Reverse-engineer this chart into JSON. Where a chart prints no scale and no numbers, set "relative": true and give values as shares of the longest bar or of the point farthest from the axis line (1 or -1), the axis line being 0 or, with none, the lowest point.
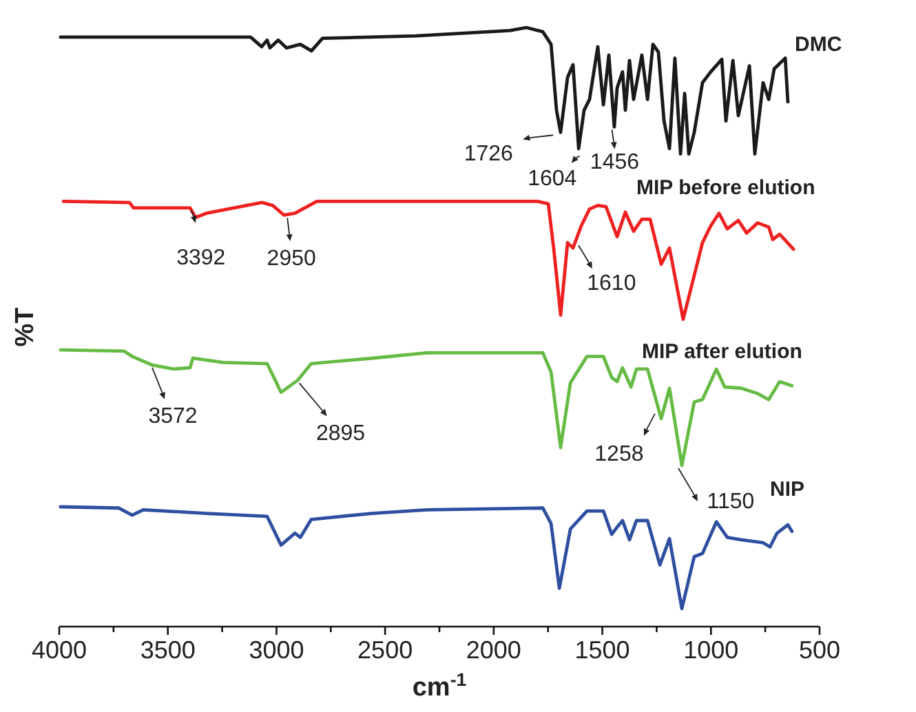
{
  "chart_data": {
    "type": "line",
    "relative": true,
    "xlabel": "cm$^{-1}$",
    "ylabel": "%T",
    "xlim": [
      4000,
      500
    ],
    "xticks": [
      4000,
      {
        "value": 3750,
        "label": null
      },
      3500,
      {
        "value": 3250,
        "label": null
      },
      3000,
      {
        "value": 2750,
        "label": null
      },
      2500,
      {
        "value": 2250,
        "label": null
      },
      2000,
      {
        "value": 1750,
        "label": null
      },
      1500,
      {
        "value": 1250,
        "label": null
      },
      1000,
      {
        "value": 750,
        "label": null
      },
      500
    ],
    "grid": false,
    "marker": "none",
    "line_style": "solid",
    "series": [
      {
        "name": "DMC",
        "color": "#1a1a1a",
        "x": [
          3994,
          3119,
          3068,
          3043,
          3030,
          2992,
          2954,
          2890,
          2839,
          2788,
          2358,
          1926,
          1850,
          1774,
          1736,
          1711,
          1692,
          1660,
          1635,
          1609,
          1584,
          1559,
          1521,
          1495,
          1470,
          1445,
          1432,
          1407,
          1394,
          1375,
          1356,
          1318,
          1292,
          1267,
          1242,
          1216,
          1191,
          1166,
          1140,
          1121,
          1102,
          1077,
          1039,
          1001,
          950,
          931,
          899,
          874,
          823,
          798,
          760,
          734,
          709,
          658,
          646
        ],
        "values": [
          0.984,
          0.984,
          0.968,
          0.979,
          0.966,
          0.979,
          0.966,
          0.972,
          0.961,
          0.982,
          0.986,
          0.995,
          1,
          0.993,
          0.972,
          0.862,
          0.825,
          0.917,
          0.938,
          0.798,
          0.862,
          0.88,
          0.968,
          0.871,
          0.954,
          0.834,
          0.899,
          0.926,
          0.862,
          0.945,
          0.88,
          0.954,
          0.88,
          0.972,
          0.959,
          0.844,
          0.798,
          0.949,
          0.789,
          0.89,
          0.789,
          0.825,
          0.908,
          0.926,
          0.947,
          0.844,
          0.945,
          0.853,
          0.936,
          0.789,
          0.908,
          0.88,
          0.931,
          0.949,
          0.876
        ]
      },
      {
        "name": "MIP before elution",
        "color": "#ee2020",
        "x": [
          3981,
          3677,
          3658,
          3398,
          3372,
          3322,
          3068,
          3017,
          2966,
          2915,
          2814,
          1800,
          1749,
          1724,
          1692,
          1660,
          1635,
          1597,
          1559,
          1521,
          1483,
          1432,
          1394,
          1356,
          1318,
          1280,
          1229,
          1191,
          1128,
          1077,
          1039,
          1001,
          963,
          925,
          874,
          836,
          785,
          734,
          715,
          684,
          620
        ],
        "values": [
          0.71,
          0.708,
          0.699,
          0.699,
          0.683,
          0.69,
          0.708,
          0.703,
          0.687,
          0.69,
          0.71,
          0.71,
          0.706,
          0.632,
          0.52,
          0.641,
          0.632,
          0.669,
          0.697,
          0.703,
          0.701,
          0.651,
          0.692,
          0.66,
          0.68,
          0.68,
          0.605,
          0.632,
          0.513,
          0.586,
          0.641,
          0.669,
          0.69,
          0.664,
          0.678,
          0.657,
          0.674,
          0.667,
          0.646,
          0.655,
          0.63
        ]
      },
      {
        "name": "MIP after elution",
        "color": "#66bb44",
        "x": [
          3994,
          3702,
          3664,
          3575,
          3474,
          3398,
          3385,
          3245,
          3043,
          2979,
          2903,
          2840,
          2561,
          2307,
          1774,
          1736,
          1692,
          1647,
          1571,
          1495,
          1457,
          1432,
          1407,
          1368,
          1343,
          1292,
          1229,
          1191,
          1134,
          1077,
          1039,
          975,
          937,
          861,
          785,
          734,
          684,
          627
        ],
        "values": [
          0.462,
          0.46,
          0.451,
          0.437,
          0.43,
          0.432,
          0.448,
          0.441,
          0.439,
          0.391,
          0.411,
          0.439,
          0.448,
          0.457,
          0.457,
          0.425,
          0.299,
          0.407,
          0.451,
          0.451,
          0.416,
          0.409,
          0.432,
          0.4,
          0.43,
          0.43,
          0.347,
          0.398,
          0.269,
          0.375,
          0.379,
          0.43,
          0.4,
          0.398,
          0.389,
          0.379,
          0.409,
          0.402
        ]
      },
      {
        "name": "NIP",
        "color": "#2e4fa0",
        "x": [
          3994,
          3727,
          3664,
          3613,
          3322,
          3043,
          2979,
          2915,
          2890,
          2840,
          2561,
          2307,
          1774,
          1736,
          1698,
          1647,
          1571,
          1495,
          1457,
          1432,
          1407,
          1375,
          1343,
          1292,
          1235,
          1191,
          1134,
          1077,
          1039,
          975,
          925,
          861,
          760,
          728,
          696,
          646,
          627
        ],
        "values": [
          0.2,
          0.198,
          0.186,
          0.195,
          0.189,
          0.184,
          0.136,
          0.156,
          0.149,
          0.179,
          0.189,
          0.195,
          0.198,
          0.172,
          0.064,
          0.163,
          0.193,
          0.193,
          0.154,
          0.166,
          0.177,
          0.145,
          0.177,
          0.177,
          0.103,
          0.147,
          0.03,
          0.117,
          0.122,
          0.175,
          0.149,
          0.145,
          0.14,
          0.133,
          0.156,
          0.17,
          0.159
        ]
      }
    ],
    "annotations": [
      {
        "text": "1726",
        "x": 1726,
        "y": 0.825
      },
      {
        "text": "1604",
        "x": 1604,
        "y": 0.79
      },
      {
        "text": "1456",
        "x": 1456,
        "y": 0.834
      },
      {
        "text": "3392",
        "x": 3392,
        "y": 0.699
      },
      {
        "text": "2950",
        "x": 2950,
        "y": 0.687
      },
      {
        "text": "1610",
        "x": 1610,
        "y": 0.641
      },
      {
        "text": "3572",
        "x": 3572,
        "y": 0.437
      },
      {
        "text": "2895",
        "x": 2895,
        "y": 0.411
      },
      {
        "text": "1258",
        "x": 1258,
        "y": 0.36
      },
      {
        "text": "1150",
        "x": 1150,
        "y": 0.269
      }
    ]
  }
}
